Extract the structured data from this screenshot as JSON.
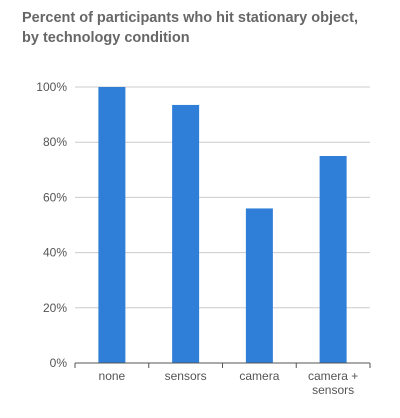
{
  "chart_data": {
    "type": "bar",
    "title_lines": [
      "Percent of participants who hit stationary object,",
      "by technology condition"
    ],
    "categories": [
      [
        "none"
      ],
      [
        "sensors"
      ],
      [
        "camera"
      ],
      [
        "camera +",
        "sensors"
      ]
    ],
    "values": [
      100,
      93.5,
      56,
      75
    ],
    "y_ticks": [
      "0%",
      "20%",
      "40%",
      "60%",
      "80%",
      "100%"
    ],
    "ylim": [
      0,
      100
    ],
    "grid": true,
    "bar_color": "#2f7fd8",
    "grid_color": "#cccccc",
    "axis_color": "#555555"
  }
}
